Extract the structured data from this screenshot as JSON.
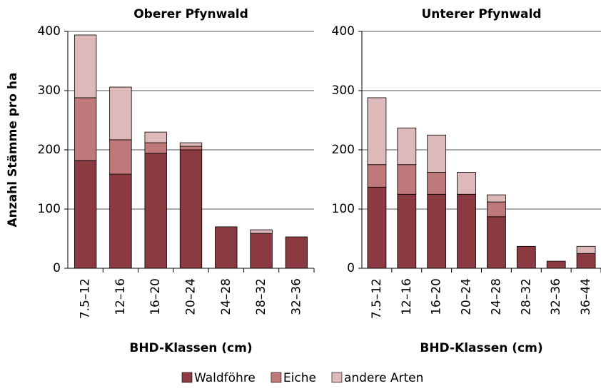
{
  "chart_data": [
    {
      "type": "bar",
      "stacked": true,
      "title": "Oberer Pfynwald",
      "x_label": "BHD-Klassen (cm)",
      "y_label": "Anzahl Stämme pro ha",
      "categories": [
        "7.5–12",
        "12–16",
        "16–20",
        "20–24",
        "24–28",
        "28–32",
        "32–36"
      ],
      "series": [
        {
          "name": "Waldföhre",
          "color": "#8b3a42",
          "values": [
            182,
            159,
            194,
            200,
            70,
            59,
            53
          ]
        },
        {
          "name": "Eiche",
          "color": "#c0797a",
          "values": [
            106,
            58,
            18,
            6,
            0,
            0,
            0
          ]
        },
        {
          "name": "andere Arten",
          "color": "#ddb9b9",
          "values": [
            106,
            89,
            18,
            6,
            0,
            6,
            0
          ]
        }
      ],
      "ylim": [
        0,
        400
      ],
      "yticks": [
        0,
        100,
        200,
        300,
        400
      ],
      "grid": true
    },
    {
      "type": "bar",
      "stacked": true,
      "title": "Unterer Pfynwald",
      "x_label": "BHD-Klassen (cm)",
      "categories": [
        "7.5–12",
        "12–16",
        "16–20",
        "20–24",
        "24–28",
        "28–32",
        "32–36",
        "36–44"
      ],
      "series": [
        {
          "color": "#8b3a42",
          "values": [
            137,
            125,
            125,
            125,
            87,
            37,
            12,
            25
          ]
        },
        {
          "color": "#c0797a",
          "values": [
            38,
            50,
            37,
            0,
            25,
            0,
            0,
            0
          ]
        },
        {
          "color": "#ddb9b9",
          "values": [
            113,
            62,
            63,
            37,
            12,
            0,
            0,
            12
          ]
        }
      ],
      "ylim": [
        0,
        400
      ],
      "yticks": [
        0,
        100,
        200,
        300,
        400
      ],
      "grid": true
    }
  ]
}
